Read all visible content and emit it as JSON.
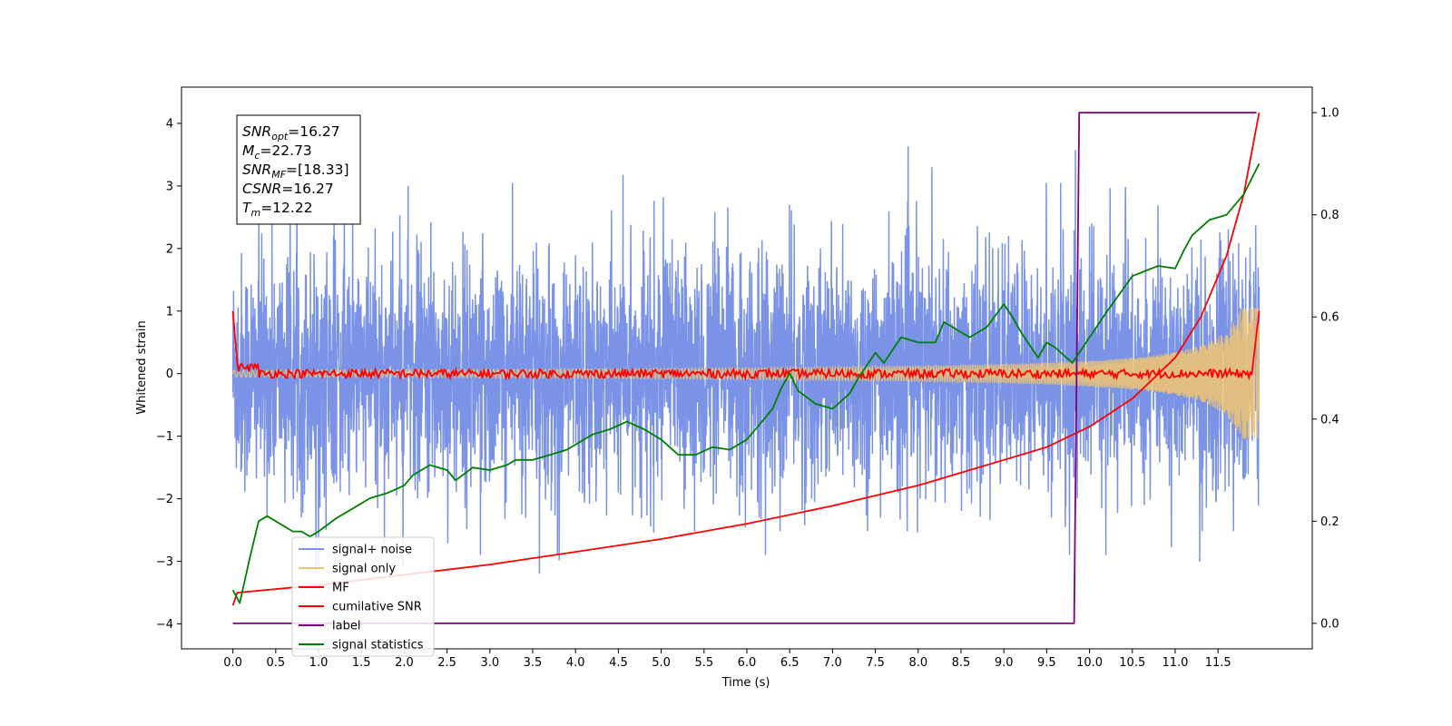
{
  "chart_data": {
    "type": "line",
    "xlabel": "Time (s)",
    "ylabel": "Whitened strain",
    "xlim": [
      -0.6,
      12.6
    ],
    "ylim": [
      -4.4,
      4.58
    ],
    "ylim_right": [
      -0.05,
      1.05
    ],
    "xticks": [
      "0.0",
      "0.5",
      "1.0",
      "1.5",
      "2.0",
      "2.5",
      "3.0",
      "3.5",
      "4.0",
      "4.5",
      "5.0",
      "5.5",
      "6.0",
      "6.5",
      "7.0",
      "7.5",
      "8.0",
      "8.5",
      "9.0",
      "9.5",
      "10.0",
      "10.5",
      "11.0",
      "11.5"
    ],
    "yticks_left": [
      "−4",
      "−3",
      "−2",
      "−1",
      "0",
      "1",
      "2",
      "3",
      "4"
    ],
    "yticks_right": [
      "0.0",
      "0.2",
      "0.4",
      "0.6",
      "0.8",
      "1.0"
    ],
    "grid": false,
    "legend_position": "lower left",
    "annotation": {
      "lines": [
        {
          "main": "SNR",
          "sub": "opt",
          "value": "=16.27"
        },
        {
          "main": "M",
          "sub": "c",
          "value": "=22.73"
        },
        {
          "main": "SNR",
          "sub": "MF",
          "value": "=[18.33]"
        },
        {
          "main": "CSNR",
          "sub": "",
          "value": "=16.27"
        },
        {
          "main": "T",
          "sub": "m",
          "value": "=12.22"
        }
      ]
    },
    "series": [
      {
        "name": "signal+ noise",
        "color": "#7a93e6",
        "axis": "left",
        "kind": "noisy",
        "x_range": [
          0,
          11.98
        ],
        "approx_std": 0.95,
        "peak_values": [
          3.3,
          3.05,
          3.05,
          -3.1,
          -2.9,
          3.05,
          -3.2
        ]
      },
      {
        "name": "signal only",
        "color": "#f2c46e",
        "axis": "left",
        "kind": "chirp",
        "x_range": [
          0,
          11.98
        ],
        "amplitude_end": 1.05
      },
      {
        "name": "MF",
        "color": "#ff0000",
        "axis": "left",
        "kind": "matched-filter",
        "x": [
          0.0,
          0.05,
          0.2,
          1.0,
          11.9,
          11.98
        ],
        "y": [
          1.0,
          0.15,
          0.05,
          0.0,
          0.05,
          1.0
        ]
      },
      {
        "name": "cumilative SNR",
        "color": "#ff0000",
        "axis": "right",
        "x": [
          0.0,
          0.05,
          1.0,
          2.0,
          3.0,
          4.0,
          5.0,
          6.0,
          7.0,
          8.0,
          8.5,
          9.0,
          9.5,
          10.0,
          10.5,
          11.0,
          11.3,
          11.6,
          11.8,
          11.98
        ],
        "y": [
          0.035,
          0.06,
          0.075,
          0.095,
          0.115,
          0.14,
          0.165,
          0.195,
          0.23,
          0.27,
          0.295,
          0.32,
          0.345,
          0.385,
          0.44,
          0.52,
          0.6,
          0.72,
          0.84,
          1.0
        ]
      },
      {
        "name": "label",
        "color": "#800080",
        "axis": "right",
        "x": [
          0.0,
          9.82,
          9.88,
          11.95
        ],
        "y": [
          0.0,
          0.0,
          1.0,
          1.0
        ]
      },
      {
        "name": "signal statistics",
        "color": "#008000",
        "axis": "right",
        "x": [
          0.0,
          0.08,
          0.2,
          0.3,
          0.4,
          0.5,
          0.7,
          0.8,
          0.9,
          1.0,
          1.2,
          1.4,
          1.6,
          1.8,
          2.0,
          2.1,
          2.3,
          2.5,
          2.6,
          2.8,
          3.0,
          3.2,
          3.3,
          3.5,
          3.7,
          3.9,
          4.0,
          4.2,
          4.4,
          4.6,
          4.8,
          5.0,
          5.2,
          5.4,
          5.6,
          5.8,
          6.0,
          6.2,
          6.3,
          6.4,
          6.5,
          6.6,
          6.8,
          7.0,
          7.2,
          7.3,
          7.5,
          7.6,
          7.8,
          8.0,
          8.2,
          8.3,
          8.5,
          8.6,
          8.8,
          9.0,
          9.1,
          9.2,
          9.4,
          9.5,
          9.6,
          9.8,
          10.0,
          10.2,
          10.5,
          10.8,
          11.0,
          11.1,
          11.2,
          11.4,
          11.6,
          11.8,
          11.98
        ],
        "y": [
          0.065,
          0.04,
          0.13,
          0.2,
          0.21,
          0.2,
          0.18,
          0.18,
          0.17,
          0.18,
          0.205,
          0.225,
          0.245,
          0.255,
          0.27,
          0.29,
          0.31,
          0.3,
          0.28,
          0.305,
          0.3,
          0.31,
          0.32,
          0.32,
          0.33,
          0.34,
          0.35,
          0.37,
          0.38,
          0.395,
          0.38,
          0.36,
          0.33,
          0.33,
          0.345,
          0.34,
          0.36,
          0.4,
          0.42,
          0.46,
          0.49,
          0.455,
          0.43,
          0.42,
          0.45,
          0.48,
          0.53,
          0.51,
          0.56,
          0.55,
          0.55,
          0.59,
          0.57,
          0.56,
          0.58,
          0.625,
          0.6,
          0.57,
          0.52,
          0.55,
          0.54,
          0.51,
          0.56,
          0.61,
          0.68,
          0.7,
          0.695,
          0.73,
          0.76,
          0.79,
          0.8,
          0.84,
          0.9
        ]
      }
    ]
  }
}
